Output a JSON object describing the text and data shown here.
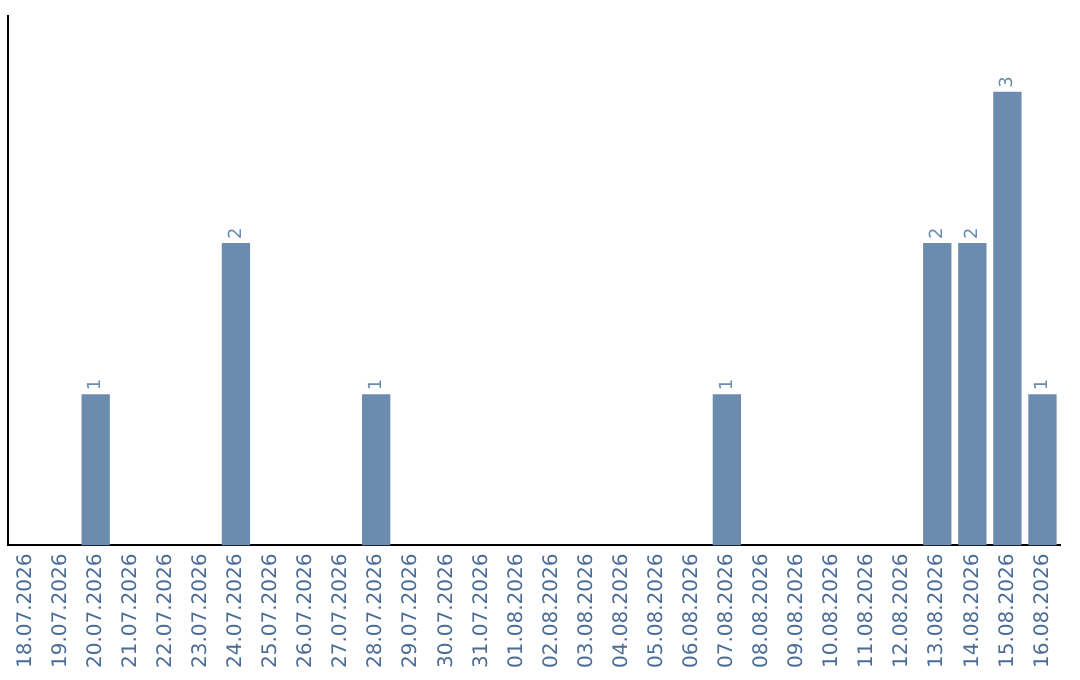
{
  "chart_data": {
    "type": "bar",
    "categories": [
      "18.07.2026",
      "19.07.2026",
      "20.07.2026",
      "21.07.2026",
      "22.07.2026",
      "23.07.2026",
      "24.07.2026",
      "25.07.2026",
      "26.07.2026",
      "27.07.2026",
      "28.07.2026",
      "29.07.2026",
      "30.07.2026",
      "31.07.2026",
      "01.08.2026",
      "02.08.2026",
      "03.08.2026",
      "04.08.2026",
      "05.08.2026",
      "06.08.2026",
      "07.08.2026",
      "08.08.2026",
      "09.08.2026",
      "10.08.2026",
      "11.08.2026",
      "12.08.2026",
      "13.08.2026",
      "14.08.2026",
      "15.08.2026",
      "16.08.2026"
    ],
    "values": [
      0,
      0,
      1,
      0,
      0,
      0,
      2,
      0,
      0,
      0,
      1,
      0,
      0,
      0,
      0,
      0,
      0,
      0,
      0,
      0,
      1,
      0,
      0,
      0,
      0,
      0,
      2,
      2,
      3,
      1
    ],
    "value_labels": [
      null,
      null,
      "1",
      null,
      null,
      null,
      "2",
      null,
      null,
      null,
      "1",
      null,
      null,
      null,
      null,
      null,
      null,
      null,
      null,
      null,
      "1",
      null,
      null,
      null,
      null,
      null,
      "2",
      "2",
      "3",
      "1"
    ],
    "color": "#6b8cae",
    "grid": false,
    "legend": false,
    "tick_labels": "x"
  }
}
